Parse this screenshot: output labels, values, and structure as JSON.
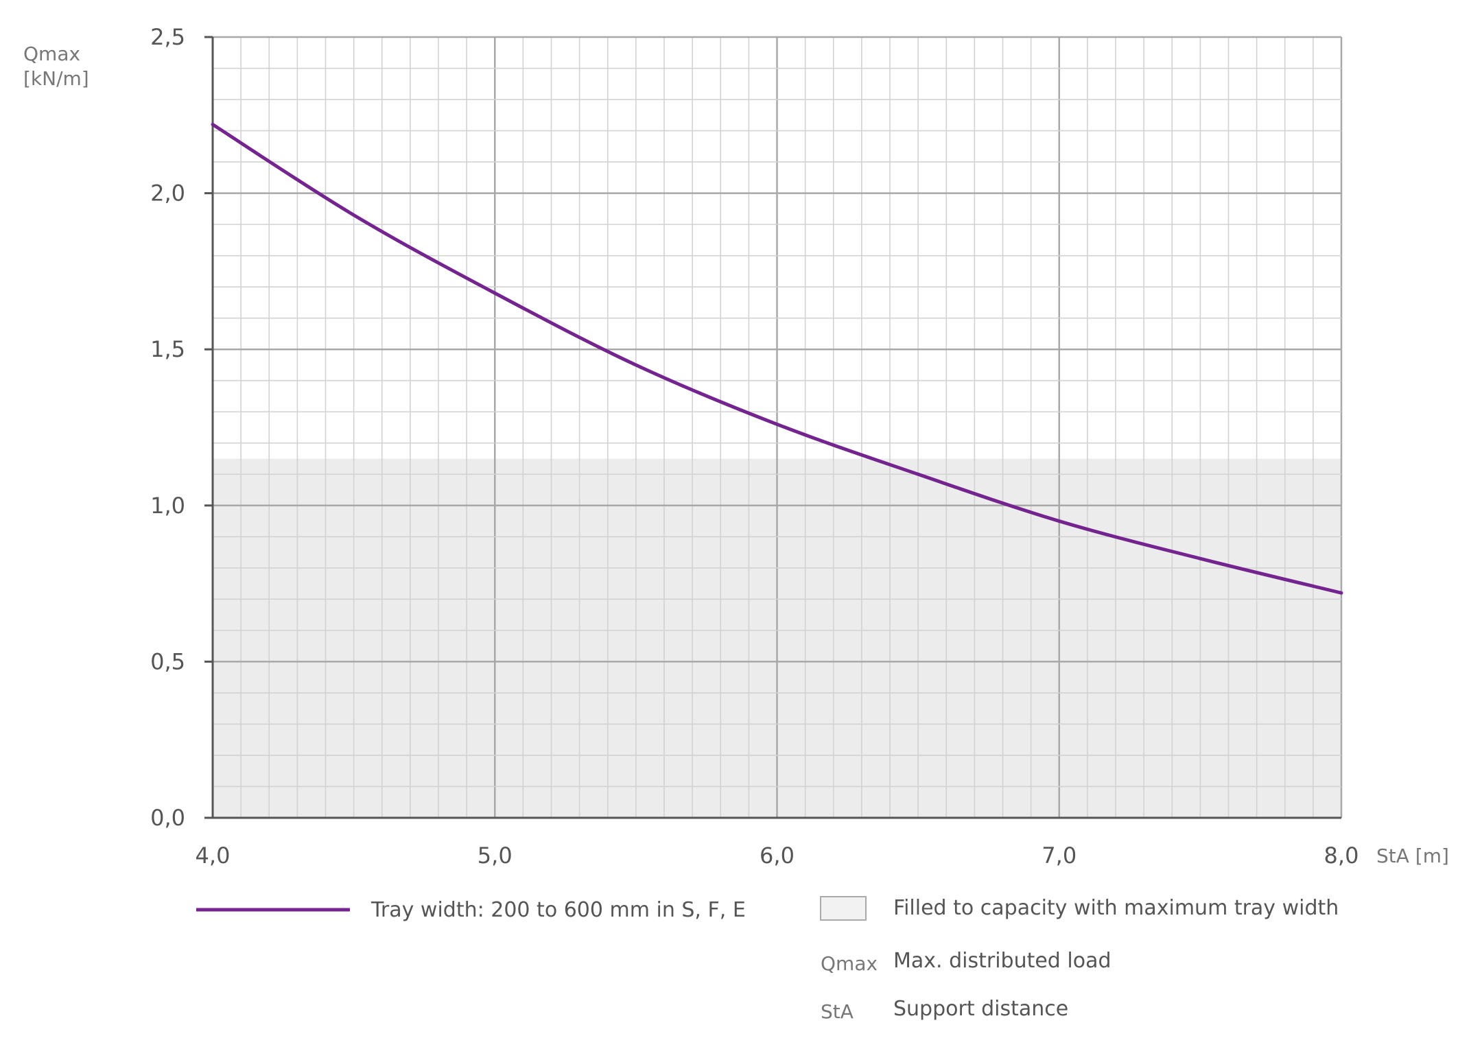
{
  "chart_data": {
    "type": "line",
    "x_axis": {
      "label": "StA [m]",
      "range": [
        4.0,
        8.0
      ],
      "ticks": [
        "4,0",
        "5,0",
        "6,0",
        "7,0",
        "8,0"
      ],
      "tick_values": [
        4.0,
        5.0,
        6.0,
        7.0,
        8.0
      ]
    },
    "y_axis": {
      "label_line1": "Qmax",
      "label_line2": "[kN/m]",
      "range": [
        0.0,
        2.5
      ],
      "ticks": [
        "0,0",
        "0,5",
        "1,0",
        "1,5",
        "2,0",
        "2,5"
      ],
      "tick_values": [
        0.0,
        0.5,
        1.0,
        1.5,
        2.0,
        2.5
      ]
    },
    "grid": true,
    "minor_grid": true,
    "series": [
      {
        "name": "Tray width: 200 to 600 mm in S, F, E",
        "color": "#74248f",
        "x": [
          4.0,
          4.5,
          5.0,
          5.5,
          6.0,
          6.5,
          7.0,
          7.5,
          8.0
        ],
        "y": [
          2.22,
          1.93,
          1.68,
          1.45,
          1.26,
          1.1,
          0.95,
          0.83,
          0.72
        ]
      }
    ],
    "filled_region": {
      "label": "Filled to capacity with maximum tray width",
      "y_range": [
        0.0,
        1.15
      ],
      "color": "#ececec"
    },
    "abbreviations": [
      {
        "abbr": "Qmax",
        "meaning": "Max. distributed load"
      },
      {
        "abbr": "StA",
        "meaning": "Support distance"
      }
    ],
    "legend_position": "bottom"
  },
  "colors": {
    "series": "#74248f",
    "region": "#ececec",
    "grid_major": "#a8a8a8",
    "grid_minor": "#d2d2d2",
    "axis": "#555555"
  }
}
